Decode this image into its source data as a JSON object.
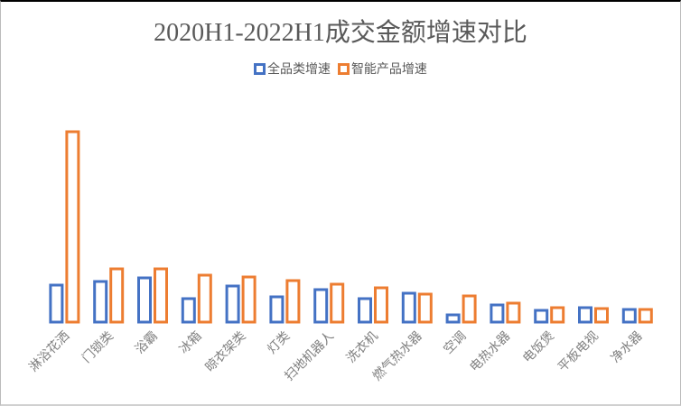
{
  "chart_data": {
    "type": "bar",
    "title": "2020H1-2022H1成交金额增速对比",
    "categories": [
      "淋浴花洒",
      "门锁类",
      "浴霸",
      "冰箱",
      "晾衣架类",
      "灯类",
      "扫地机器人",
      "洗衣机",
      "燃气热水器",
      "空调",
      "电热水器",
      "电饭煲",
      "平板电视",
      "净水器"
    ],
    "series": [
      {
        "name": "全品类增速",
        "color": "#4472C4",
        "values": [
          41,
          45,
          49,
          26,
          40,
          28,
          36,
          26,
          32,
          8,
          19,
          13,
          16,
          14
        ]
      },
      {
        "name": "智能产品增速",
        "color": "#ED7D31",
        "values": [
          211,
          59,
          59,
          52,
          50,
          46,
          42,
          38,
          31,
          29,
          21,
          16,
          15,
          14
        ]
      }
    ],
    "value_scale": "relative (no axis shown)",
    "ylim": [
      0,
      211
    ],
    "grid": false,
    "legend_position": "top",
    "bar_style": "outlined"
  }
}
